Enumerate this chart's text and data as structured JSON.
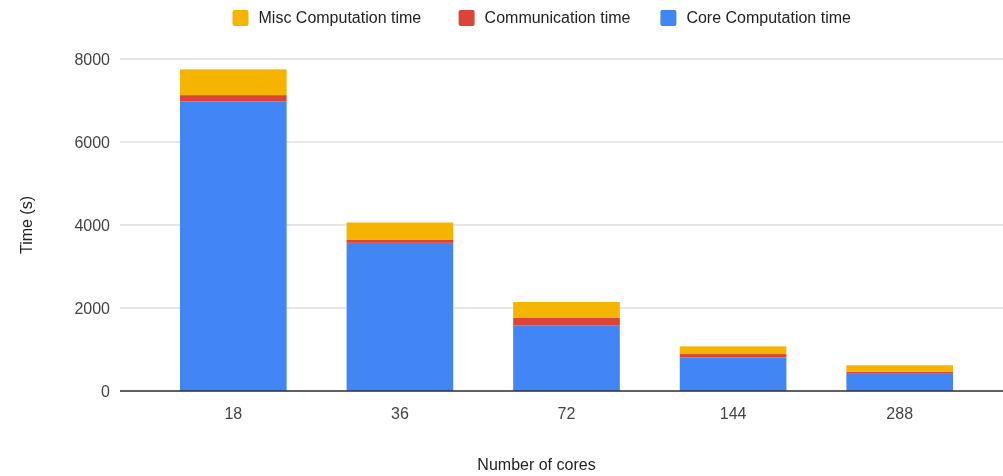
{
  "chart_data": {
    "type": "bar",
    "stacked": true,
    "xlabel": "Number of cores",
    "ylabel": "Time (s)",
    "categories": [
      "18",
      "36",
      "72",
      "144",
      "288"
    ],
    "series": [
      {
        "name": "Core Computation time",
        "color": "#4285f4",
        "values": [
          6980,
          3570,
          1575,
          810,
          415
        ]
      },
      {
        "name": "Communication time",
        "color": "#db4437",
        "values": [
          150,
          80,
          195,
          80,
          50
        ]
      },
      {
        "name": "Misc Computation time",
        "color": "#f4b400",
        "values": [
          620,
          410,
          375,
          185,
          155
        ]
      }
    ],
    "ylim": [
      0,
      8000
    ],
    "yticks": [
      0,
      2000,
      4000,
      6000,
      8000
    ],
    "grid": "y",
    "legend": "top"
  }
}
